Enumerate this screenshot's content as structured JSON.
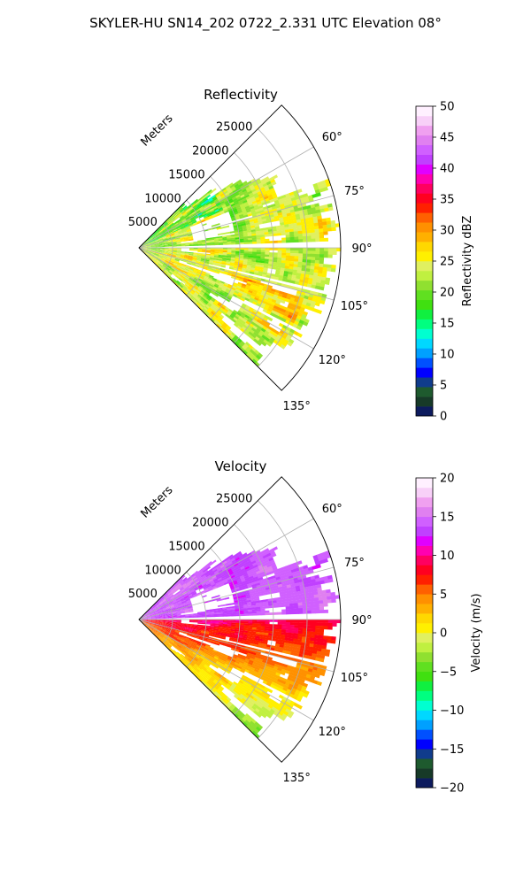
{
  "figure": {
    "suptitle": "SKYLER-HU  SN14_202  0722_2.331 UTC Elevation 08°"
  },
  "chart_data": [
    {
      "type": "heatmap",
      "subtype": "polar-sector (radar PPI)",
      "title": "Reflectivity",
      "radial_axis_label": "Meters",
      "radial_ticks": [
        5000,
        10000,
        15000,
        20000,
        25000
      ],
      "radial_tick_labels": [
        "5000",
        "10000",
        "15000",
        "20000",
        "25000"
      ],
      "radial_range": [
        0,
        30000
      ],
      "azimuth_range_deg": [
        45,
        135
      ],
      "azimuth_ticks": [
        60,
        75,
        90,
        105,
        120,
        135
      ],
      "azimuth_tick_labels": [
        "60°",
        "75°",
        "90°",
        "105°",
        "120°",
        "135°"
      ],
      "grid": true,
      "colorbar": {
        "label": "Reflectivity dBZ",
        "range": [
          0,
          50
        ],
        "ticks": [
          0,
          5,
          10,
          15,
          20,
          25,
          30,
          35,
          40,
          45,
          50
        ],
        "tick_labels": [
          "0",
          "5",
          "10",
          "15",
          "20",
          "25",
          "30",
          "35",
          "40",
          "45",
          "50"
        ],
        "colors": [
          "#0d1b5e",
          "#173a28",
          "#1e5a2e",
          "#103c8c",
          "#0000ff",
          "#0050ff",
          "#00a0ff",
          "#00d8ff",
          "#00ffd0",
          "#00ff80",
          "#10f040",
          "#40e010",
          "#60e020",
          "#90e030",
          "#c0f040",
          "#e0f060",
          "#fff000",
          "#ffd800",
          "#ffb000",
          "#ff9000",
          "#ff6000",
          "#ff2000",
          "#ff0020",
          "#ff0060",
          "#ff00b0",
          "#e000ff",
          "#c040ff",
          "#d060ff",
          "#e080f0",
          "#f0a0f0",
          "#f8d0f8",
          "#fff0ff"
        ]
      },
      "field_description_values": {
        "dominant_range_dBZ": [
          18,
          30
        ],
        "peak_dBZ": 36,
        "minimum_dBZ": 8
      }
    },
    {
      "type": "heatmap",
      "subtype": "polar-sector (radar PPI)",
      "title": "Velocity",
      "radial_axis_label": "Meters",
      "radial_ticks": [
        5000,
        10000,
        15000,
        20000,
        25000
      ],
      "radial_tick_labels": [
        "5000",
        "10000",
        "15000",
        "20000",
        "25000"
      ],
      "radial_range": [
        0,
        30000
      ],
      "azimuth_range_deg": [
        45,
        135
      ],
      "azimuth_ticks": [
        60,
        75,
        90,
        105,
        120,
        135
      ],
      "azimuth_tick_labels": [
        "60°",
        "75°",
        "90°",
        "105°",
        "120°",
        "135°"
      ],
      "grid": true,
      "colorbar": {
        "label": "Velocity (m/s)",
        "range": [
          -20,
          20
        ],
        "ticks": [
          -20,
          -15,
          -10,
          -5,
          0,
          5,
          10,
          15,
          20
        ],
        "tick_labels": [
          "−20",
          "−15",
          "−10",
          "−5",
          "0",
          "5",
          "10",
          "15",
          "20"
        ],
        "colors": [
          "#0d1b5e",
          "#173a28",
          "#1e5a2e",
          "#103c8c",
          "#0000ff",
          "#0050ff",
          "#00a0ff",
          "#00d8ff",
          "#00ffd0",
          "#00ff80",
          "#10f040",
          "#40e010",
          "#60e020",
          "#90e030",
          "#c0f040",
          "#e0f060",
          "#fff000",
          "#ffd800",
          "#ffb000",
          "#ff9000",
          "#ff6000",
          "#ff2000",
          "#ff0020",
          "#ff0060",
          "#ff00b0",
          "#e000ff",
          "#c040ff",
          "#d060ff",
          "#e080f0",
          "#f0a0f0",
          "#f8d0f8",
          "#fff0ff"
        ]
      },
      "field_description_values": {
        "north_half_m_s": [
          12,
          16
        ],
        "south_half_m_s": [
          -2,
          9
        ]
      }
    }
  ]
}
